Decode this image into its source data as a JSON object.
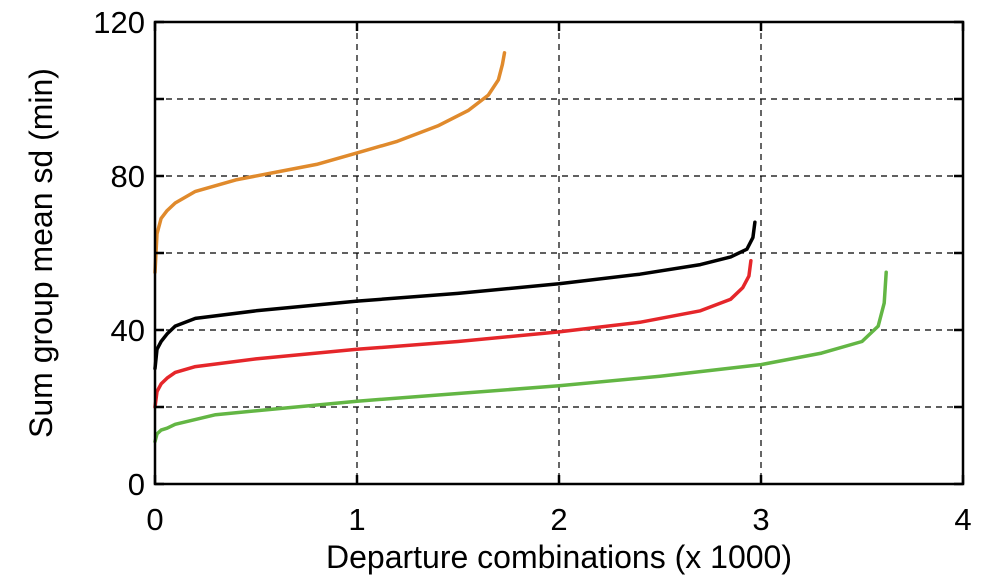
{
  "chart_data": {
    "type": "line",
    "title": "",
    "xlabel": "Departure combinations (x 1000)",
    "ylabel": "Sum group mean sd (min)",
    "xlim": [
      0,
      4
    ],
    "ylim": [
      0,
      120
    ],
    "x_ticks": [
      0,
      1,
      2,
      3,
      4
    ],
    "x_tick_labels": [
      "0",
      "1",
      "2",
      "3",
      "4"
    ],
    "y_ticks": [
      0,
      20,
      40,
      60,
      80,
      100,
      120
    ],
    "y_tick_labels": [
      "0",
      "",
      "40",
      "",
      "80",
      "",
      "120"
    ],
    "grid": true,
    "legend": "none",
    "series": [
      {
        "color": "#e08a2c",
        "x": [
          0.0,
          0.01,
          0.03,
          0.06,
          0.1,
          0.2,
          0.4,
          0.6,
          0.8,
          1.0,
          1.2,
          1.4,
          1.55,
          1.65,
          1.7,
          1.72,
          1.73
        ],
        "y": [
          55,
          65,
          69,
          71,
          73,
          76,
          79,
          81,
          83,
          86,
          89,
          93,
          97,
          101,
          105,
          109,
          112
        ]
      },
      {
        "color": "#000000",
        "x": [
          0.0,
          0.01,
          0.03,
          0.06,
          0.1,
          0.2,
          0.5,
          1.0,
          1.5,
          2.0,
          2.4,
          2.7,
          2.85,
          2.93,
          2.96,
          2.97
        ],
        "y": [
          30,
          35,
          37,
          39,
          41,
          43,
          45,
          47.5,
          49.5,
          52,
          54.5,
          57,
          59,
          61,
          64,
          68
        ]
      },
      {
        "color": "#e5262a",
        "x": [
          0.0,
          0.01,
          0.03,
          0.06,
          0.1,
          0.2,
          0.5,
          1.0,
          1.5,
          2.0,
          2.4,
          2.7,
          2.85,
          2.91,
          2.94,
          2.95
        ],
        "y": [
          20,
          24,
          26,
          27.5,
          29,
          30.5,
          32.5,
          35,
          37,
          39.5,
          42,
          45,
          48,
          51,
          54,
          58
        ]
      },
      {
        "color": "#63b644",
        "x": [
          0.0,
          0.01,
          0.03,
          0.06,
          0.1,
          0.3,
          0.6,
          1.0,
          1.5,
          2.0,
          2.5,
          3.0,
          3.3,
          3.5,
          3.58,
          3.61,
          3.62
        ],
        "y": [
          11,
          13,
          14,
          14.5,
          15.5,
          18,
          19.5,
          21.5,
          23.5,
          25.5,
          28,
          31,
          34,
          37,
          41,
          47,
          55
        ]
      }
    ]
  }
}
